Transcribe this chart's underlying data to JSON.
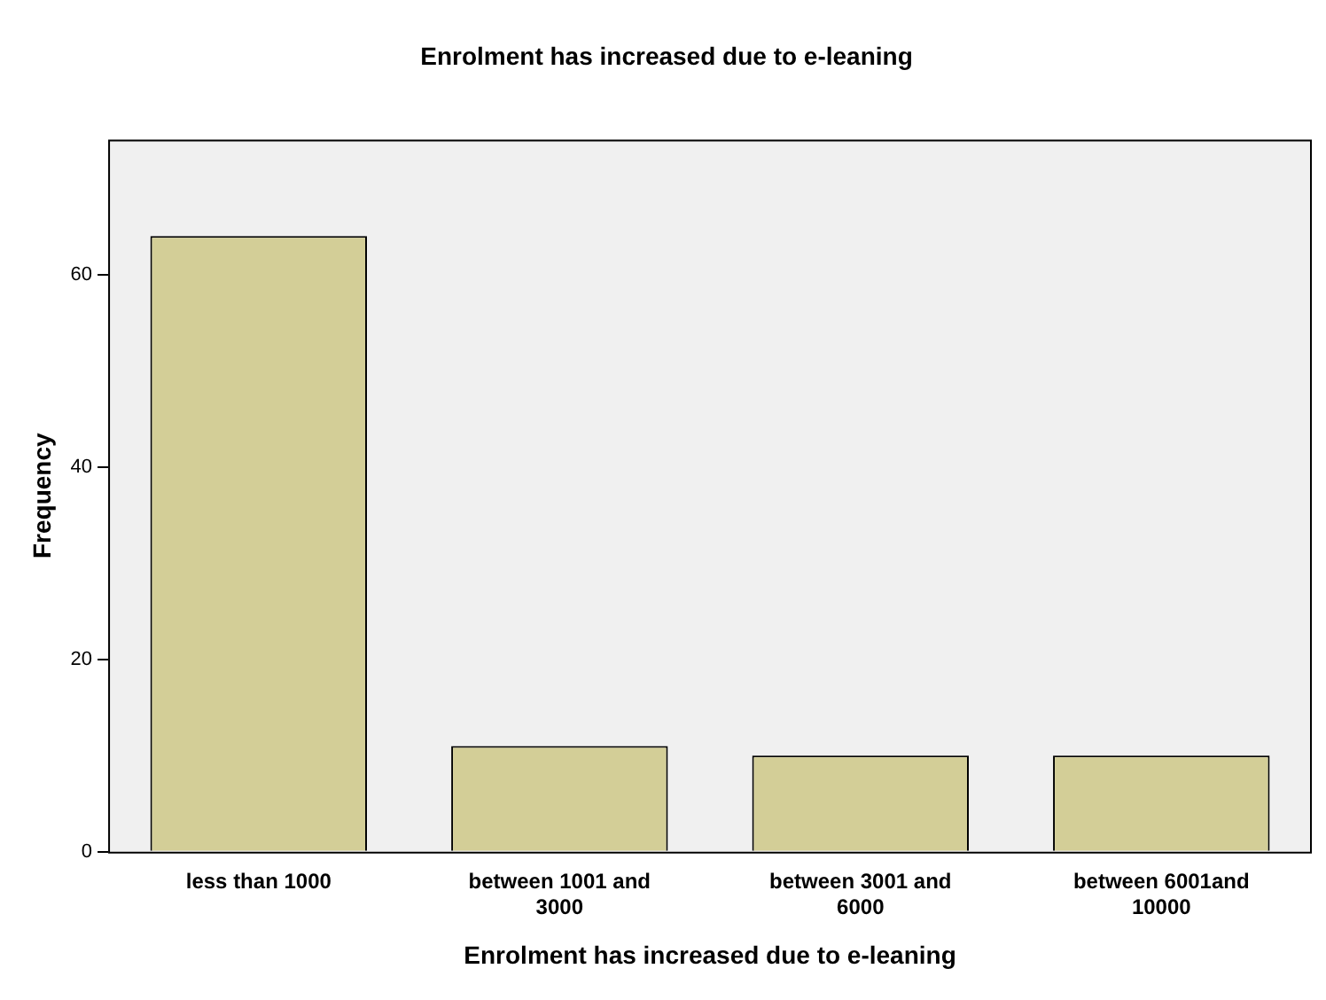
{
  "chart_data": {
    "type": "bar",
    "title": "Enrolment has increased due to e-leaning",
    "xlabel": "Enrolment has increased due to e-leaning",
    "ylabel": "Frequency",
    "categories": [
      "less than 1000",
      "between 1001 and 3000",
      "between 3001 and 6000",
      "between 6001and 10000"
    ],
    "values": [
      64,
      11,
      10,
      10
    ],
    "color": "#d3ce97",
    "ylim": [
      0,
      74
    ],
    "yticks": [
      0,
      20,
      40,
      60
    ],
    "grid": false,
    "legend": false
  }
}
